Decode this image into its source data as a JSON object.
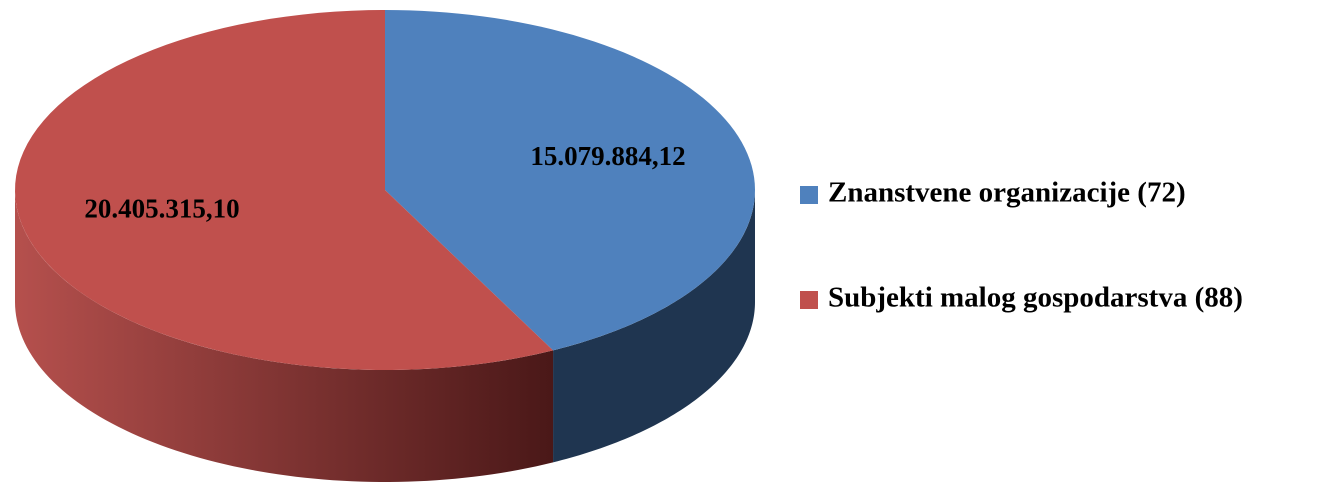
{
  "chart_data": {
    "type": "pie",
    "categories": [
      "Znanstvene organizacije (72)",
      "Subjekti malog gospodarstva (88)"
    ],
    "values": [
      15079884.12,
      20405315.1
    ],
    "value_labels": [
      "15.079.884,12",
      "20.405.315,10"
    ],
    "colors": [
      "#4f81bd",
      "#c0504d"
    ],
    "legend": "right"
  }
}
